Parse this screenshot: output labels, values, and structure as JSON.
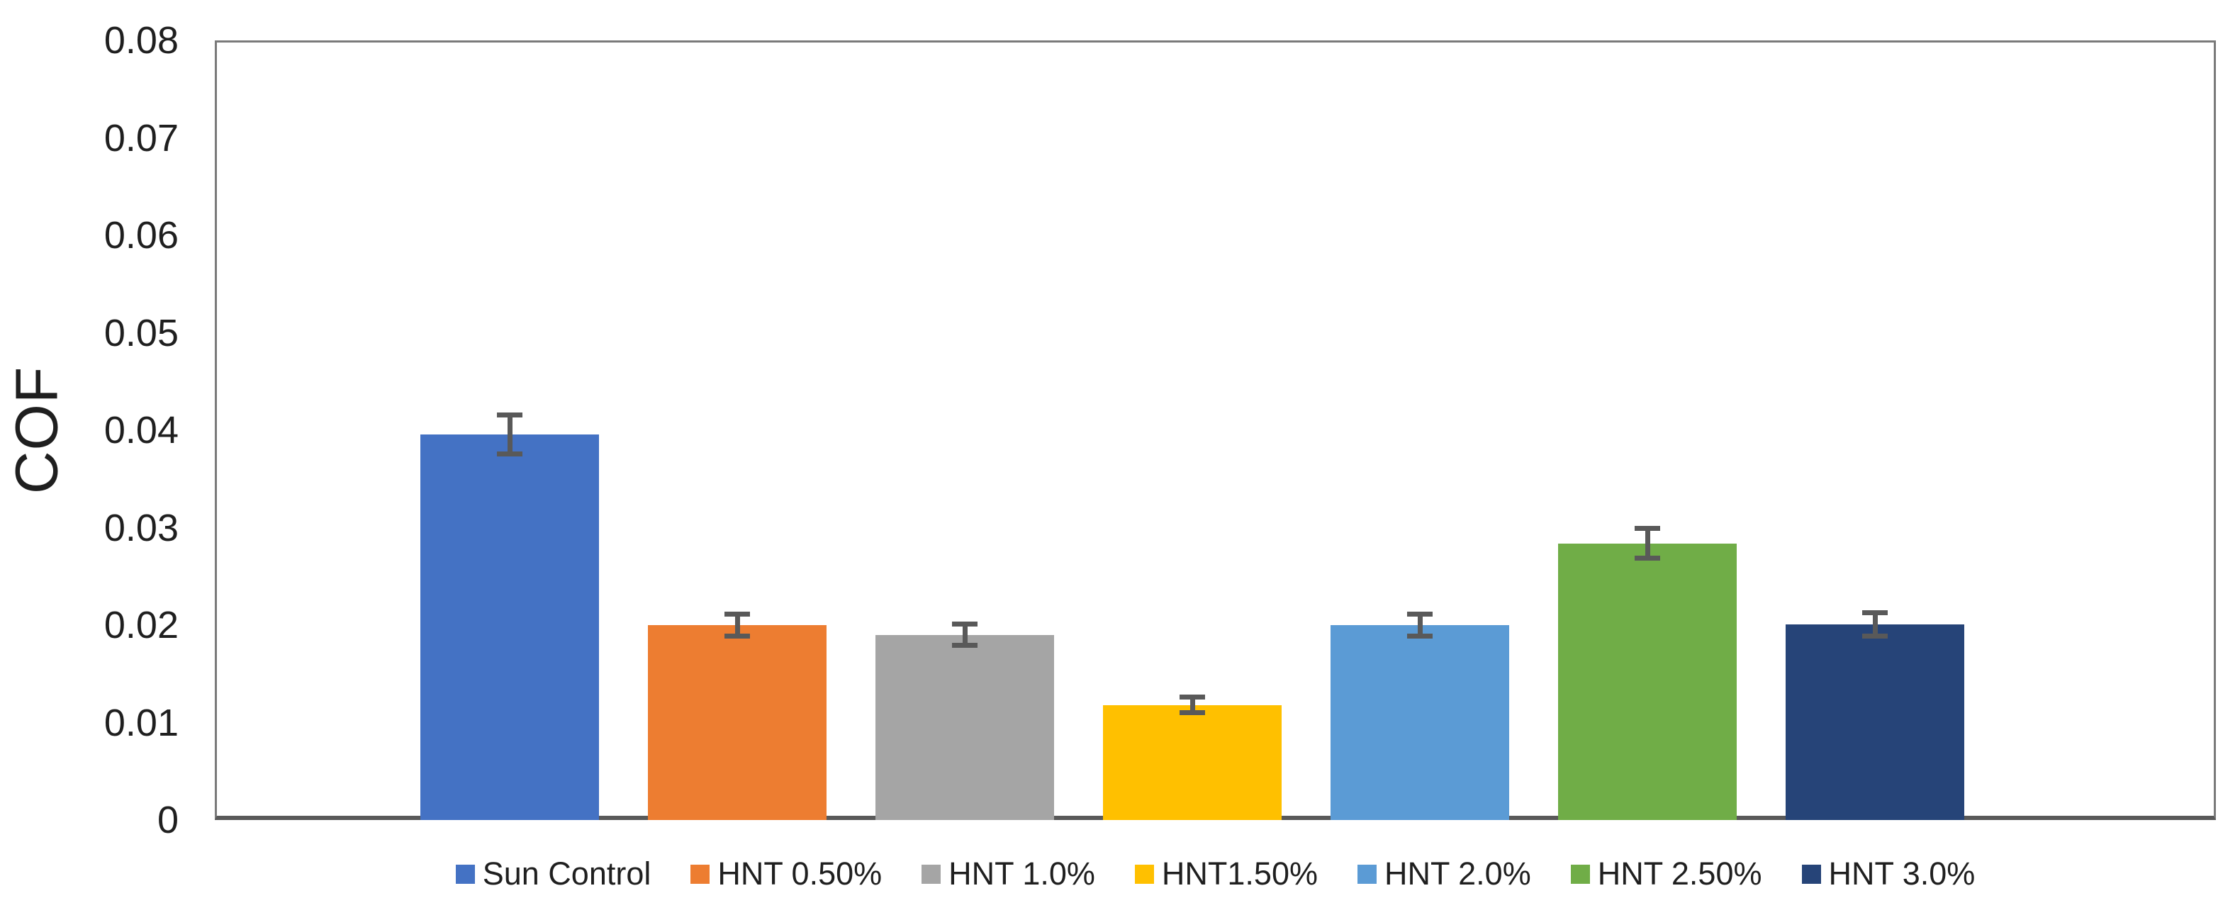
{
  "chart_data": {
    "type": "bar",
    "title": "",
    "ylabel": "COF",
    "xlabel": "",
    "ylim": [
      0,
      0.08
    ],
    "ytick_labels": [
      "0.08",
      "0.07",
      "0.06",
      "0.05",
      "0.04",
      "0.03",
      "0.02",
      "0.01",
      "0"
    ],
    "categories": [
      "Sun Control",
      "HNT 0.50%",
      "HNT 1.0%",
      "HNT1.50%",
      "HNT 2.0%",
      "HNT 2.50%",
      "HNT 3.0%"
    ],
    "values": [
      0.0396,
      0.02,
      0.019,
      0.0118,
      0.02,
      0.0284,
      0.0201
    ],
    "error_bars": [
      0.002,
      0.0011,
      0.0011,
      0.0008,
      0.0011,
      0.0015,
      0.0012
    ],
    "bar_colors": [
      "#4472C4",
      "#ED7D31",
      "#A5A5A5",
      "#FFC000",
      "#5B9BD5",
      "#70AD47",
      "#264478"
    ],
    "legend_position": "bottom",
    "legend_entries": [
      "Sun Control",
      "HNT 0.50%",
      "HNT 1.0%",
      "HNT1.50%",
      "HNT 2.0%",
      "HNT 2.50%",
      "HNT 3.0%"
    ],
    "grid": false
  },
  "colors": {
    "background": "#FFFFFF",
    "frame_line": "#7A7A7A",
    "axis_line": "#595959",
    "error_bar": "#595959",
    "text": "#1F1F1F"
  }
}
